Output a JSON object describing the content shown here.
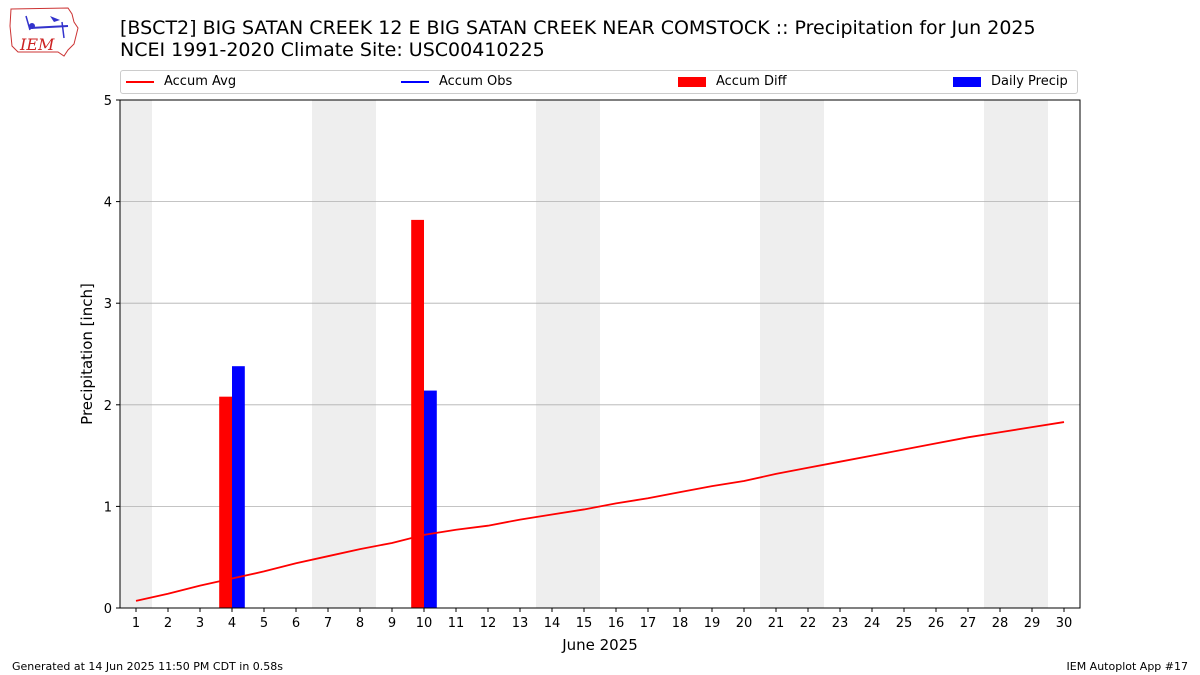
{
  "header": {
    "title_line1": "[BSCT2] BIG SATAN CREEK 12 E BIG SATAN CREEK NEAR COMSTOCK :: Precipitation for Jun 2025",
    "title_line2": "NCEI 1991-2020 Climate Site: USC00410225"
  },
  "logo": {
    "text": "IEM"
  },
  "footer": {
    "left": "Generated at 14 Jun 2025 11:50 PM CDT in 0.58s",
    "right": "IEM Autoplot App #17"
  },
  "colors": {
    "accum_avg": "#ff0000",
    "accum_obs": "#0000ff",
    "accum_diff": "#ff0000",
    "daily_precip": "#0000ff",
    "weekend_band": "#eeeeee",
    "grid": "#b0b0b0"
  },
  "chart_data": {
    "type": "bar",
    "xlabel": "June 2025",
    "ylabel": "Precipitation [inch]",
    "xlim": [
      0.5,
      30.5
    ],
    "ylim": [
      0,
      5
    ],
    "x_ticks": [
      1,
      2,
      3,
      4,
      5,
      6,
      7,
      8,
      9,
      10,
      11,
      12,
      13,
      14,
      15,
      16,
      17,
      18,
      19,
      20,
      21,
      22,
      23,
      24,
      25,
      26,
      27,
      28,
      29,
      30
    ],
    "y_ticks": [
      0,
      1,
      2,
      3,
      4,
      5
    ],
    "grid": "horizontal",
    "legend_position": "top",
    "weekend_bands": [
      [
        0.5,
        1.5
      ],
      [
        6.5,
        8.5
      ],
      [
        13.5,
        15.5
      ],
      [
        20.5,
        22.5
      ],
      [
        27.5,
        29.5
      ]
    ],
    "legend": [
      "Accum Avg",
      "Accum Obs",
      "Accum Diff",
      "Daily Precip"
    ],
    "series": [
      {
        "name": "Accum Avg",
        "kind": "line",
        "x": [
          1,
          2,
          3,
          4,
          5,
          6,
          7,
          8,
          9,
          10,
          11,
          12,
          13,
          14,
          15,
          16,
          17,
          18,
          19,
          20,
          21,
          22,
          23,
          24,
          25,
          26,
          27,
          28,
          29,
          30
        ],
        "values": [
          0.07,
          0.14,
          0.22,
          0.29,
          0.36,
          0.44,
          0.51,
          0.58,
          0.64,
          0.72,
          0.77,
          0.81,
          0.87,
          0.92,
          0.97,
          1.03,
          1.08,
          1.14,
          1.2,
          1.25,
          1.32,
          1.38,
          1.44,
          1.5,
          1.56,
          1.62,
          1.68,
          1.73,
          1.78,
          1.83
        ]
      },
      {
        "name": "Accum Diff",
        "kind": "bar",
        "x": [
          4,
          10
        ],
        "values": [
          2.08,
          3.82
        ]
      },
      {
        "name": "Daily Precip",
        "kind": "bar",
        "x": [
          4,
          10
        ],
        "values": [
          2.38,
          2.14
        ]
      }
    ]
  }
}
